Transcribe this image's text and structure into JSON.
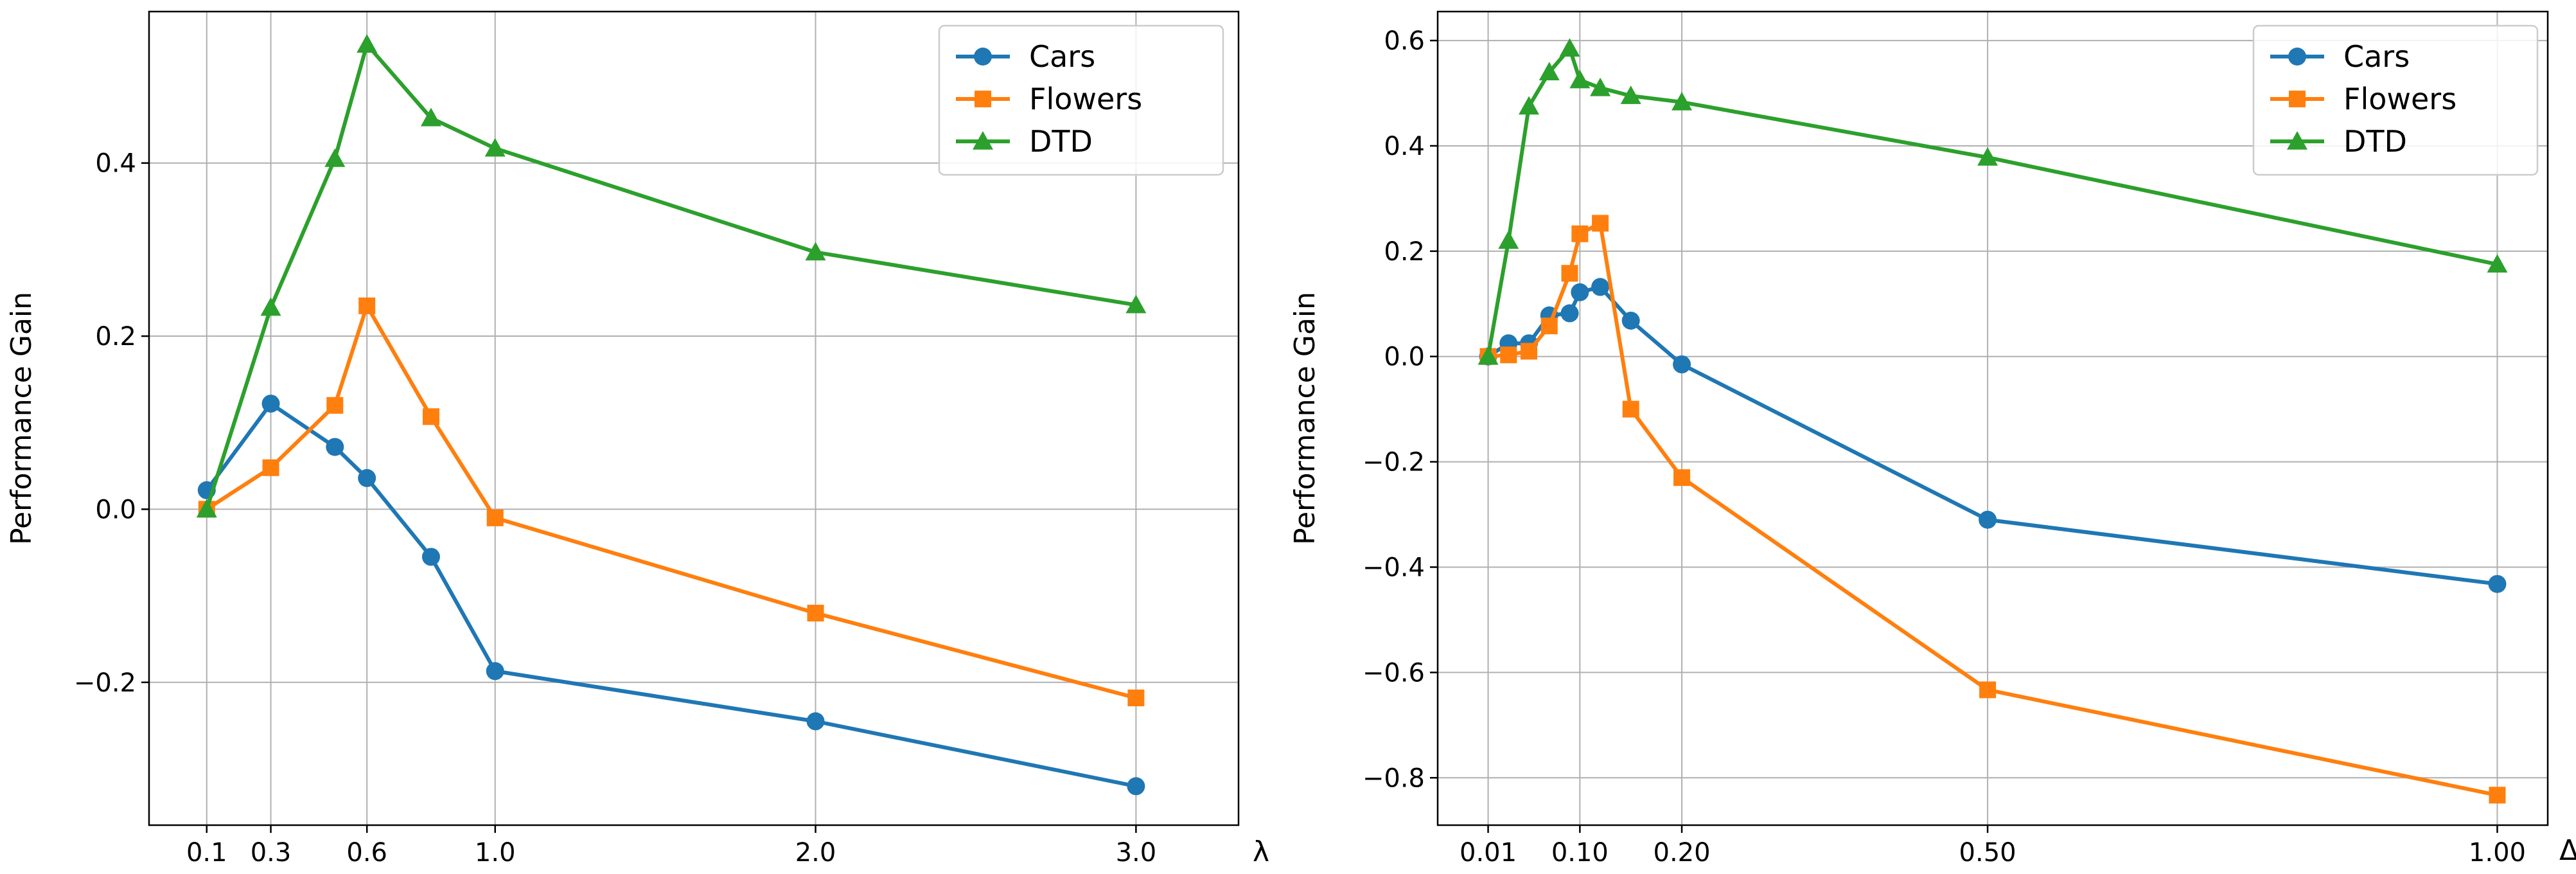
{
  "colors": {
    "Cars": "#1f77b4",
    "Flowers": "#ff7f0e",
    "DTD": "#2ca02c"
  },
  "chart_data": [
    {
      "type": "line",
      "title": "",
      "xlabel": "λ",
      "ylabel": "Performance Gain",
      "xlim": [
        -0.08,
        3.32
      ],
      "ylim": [
        -0.365,
        0.575
      ],
      "xticks": [
        0.1,
        0.3,
        0.6,
        1.0,
        2.0,
        3.0
      ],
      "xtick_labels": [
        "0.1",
        "0.3",
        "0.6",
        "1.0",
        "2.0",
        "3.0"
      ],
      "yticks": [
        -0.2,
        0.0,
        0.2,
        0.4
      ],
      "ytick_labels": [
        "−0.2",
        "0.0",
        "0.2",
        "0.4"
      ],
      "grid": true,
      "legend_position": "top-right",
      "series": [
        {
          "name": "Cars",
          "marker": "circle",
          "x": [
            0.1,
            0.3,
            0.5,
            0.6,
            0.8,
            1.0,
            2.0,
            3.0
          ],
          "y": [
            0.022,
            0.122,
            0.072,
            0.036,
            -0.055,
            -0.187,
            -0.245,
            -0.32
          ]
        },
        {
          "name": "Flowers",
          "marker": "square",
          "x": [
            0.1,
            0.3,
            0.5,
            0.6,
            0.8,
            1.0,
            2.0,
            3.0
          ],
          "y": [
            0.0,
            0.048,
            0.12,
            0.235,
            0.107,
            -0.01,
            -0.12,
            -0.218
          ]
        },
        {
          "name": "DTD",
          "marker": "triangle",
          "x": [
            0.1,
            0.3,
            0.5,
            0.6,
            0.8,
            1.0,
            2.0,
            3.0
          ],
          "y": [
            0.0,
            0.233,
            0.405,
            0.537,
            0.452,
            0.417,
            0.297,
            0.236
          ]
        }
      ]
    },
    {
      "type": "line",
      "title": "",
      "xlabel": "Δ_t",
      "ylabel": "Performance Gain",
      "xlim": [
        -0.0395,
        1.0495
      ],
      "ylim": [
        -0.89,
        0.655
      ],
      "xticks": [
        0.01,
        0.1,
        0.2,
        0.5,
        1.0
      ],
      "xtick_labels": [
        "0.01",
        "0.10",
        "0.20",
        "0.50",
        "1.00"
      ],
      "yticks": [
        -0.8,
        -0.6,
        -0.4,
        -0.2,
        0.0,
        0.2,
        0.4,
        0.6
      ],
      "ytick_labels": [
        "−0.8",
        "−0.6",
        "−0.4",
        "−0.2",
        "0.0",
        "0.2",
        "0.4",
        "0.6"
      ],
      "grid": true,
      "legend_position": "top-right",
      "series": [
        {
          "name": "Cars",
          "marker": "circle",
          "x": [
            0.01,
            0.03,
            0.05,
            0.07,
            0.09,
            0.1,
            0.12,
            0.15,
            0.2,
            0.5,
            1.0
          ],
          "y": [
            0.0,
            0.025,
            0.025,
            0.078,
            0.082,
            0.122,
            0.132,
            0.068,
            -0.015,
            -0.31,
            -0.432
          ]
        },
        {
          "name": "Flowers",
          "marker": "square",
          "x": [
            0.01,
            0.03,
            0.05,
            0.07,
            0.09,
            0.1,
            0.12,
            0.15,
            0.2,
            0.5,
            1.0
          ],
          "y": [
            0.0,
            0.003,
            0.01,
            0.058,
            0.158,
            0.233,
            0.253,
            -0.1,
            -0.23,
            -0.633,
            -0.833
          ]
        },
        {
          "name": "DTD",
          "marker": "triangle",
          "x": [
            0.01,
            0.03,
            0.05,
            0.07,
            0.09,
            0.1,
            0.12,
            0.15,
            0.2,
            0.5,
            1.0
          ],
          "y": [
            0.0,
            0.22,
            0.475,
            0.54,
            0.585,
            0.525,
            0.51,
            0.495,
            0.483,
            0.378,
            0.175
          ]
        }
      ]
    }
  ]
}
